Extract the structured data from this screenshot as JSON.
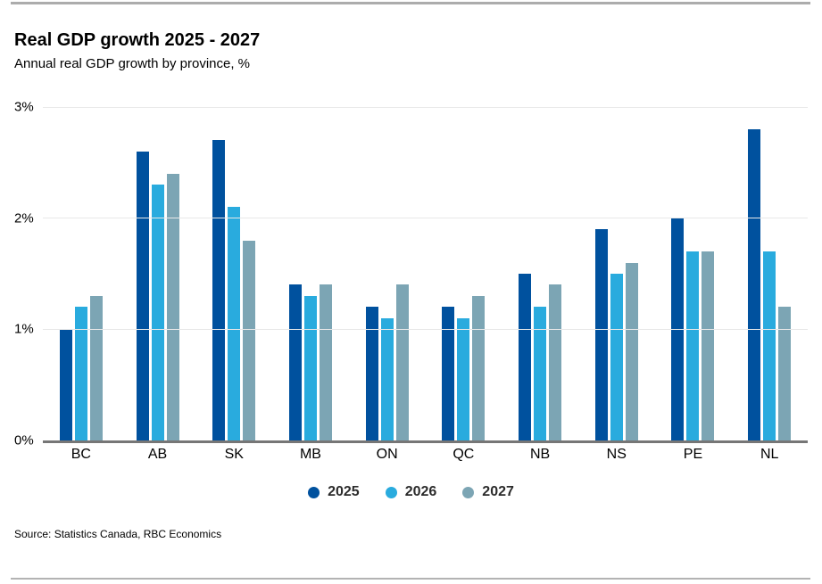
{
  "header": {
    "title": "Real GDP growth 2025 - 2027",
    "subtitle": "Annual real GDP growth by province, %"
  },
  "chart_data": {
    "type": "bar",
    "title": "Real GDP growth 2025 - 2027",
    "subtitle": "Annual real GDP growth by province, %",
    "categories": [
      "BC",
      "AB",
      "SK",
      "MB",
      "ON",
      "QC",
      "NB",
      "NS",
      "PE",
      "NL"
    ],
    "series": [
      {
        "name": "2025",
        "color": "#00519e",
        "values": [
          1.0,
          2.6,
          2.7,
          1.4,
          1.2,
          1.2,
          1.5,
          1.9,
          2.0,
          2.8
        ]
      },
      {
        "name": "2026",
        "color": "#29abde",
        "values": [
          1.2,
          2.3,
          2.1,
          1.3,
          1.1,
          1.1,
          1.2,
          1.5,
          1.7,
          1.7
        ]
      },
      {
        "name": "2027",
        "color": "#7ca5b4",
        "values": [
          1.3,
          2.4,
          1.8,
          1.4,
          1.4,
          1.3,
          1.4,
          1.6,
          1.7,
          1.2
        ]
      }
    ],
    "xlabel": "",
    "ylabel": "",
    "ylim": [
      0,
      3
    ],
    "yticks": [
      {
        "label": "0%",
        "value": 0
      },
      {
        "label": "1%",
        "value": 1
      },
      {
        "label": "2%",
        "value": 2
      },
      {
        "label": "3%",
        "value": 3
      }
    ],
    "grid": true,
    "legend_position": "bottom-center"
  },
  "footer": {
    "source": "Source: Statistics Canada, RBC Economics"
  },
  "colors": {
    "gridline": "#e8e8e8",
    "axis_line": "#767676",
    "border_rule": "#acacac"
  }
}
